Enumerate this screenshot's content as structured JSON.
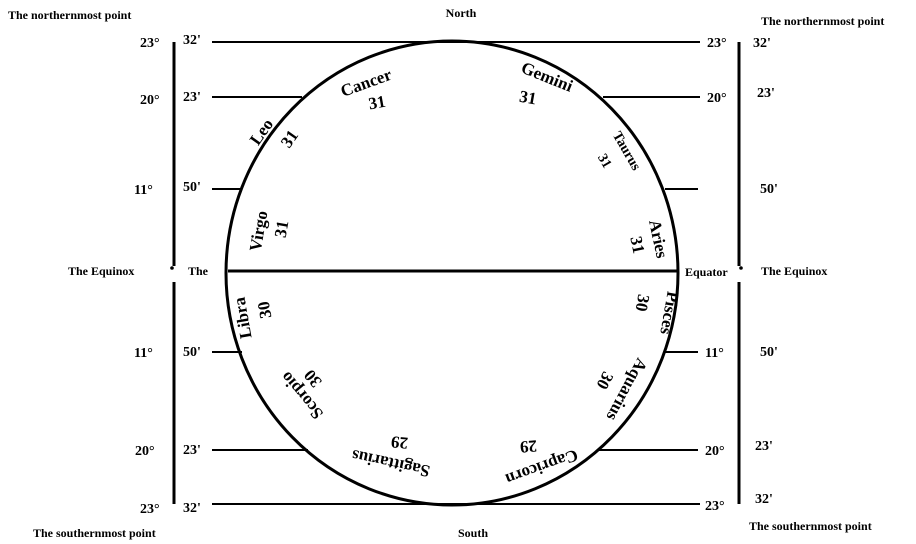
{
  "labels": {
    "north": "North",
    "south": "South",
    "northernmost": "The northernmost point",
    "southernmost": "The southernmost point",
    "equinox": "The Equinox",
    "the": "The",
    "equator": "Equator"
  },
  "angles": {
    "deg23": "23°",
    "deg20": "20°",
    "deg11": "11°",
    "min32": "32'",
    "min23": "23'",
    "min50": "50'"
  },
  "signs": [
    {
      "name": "Cancer",
      "days": "31"
    },
    {
      "name": "Gemini",
      "days": "31"
    },
    {
      "name": "Leo",
      "days": "31"
    },
    {
      "name": "Taurus",
      "days": "31"
    },
    {
      "name": "Virgo",
      "days": "31"
    },
    {
      "name": "Aries",
      "days": "31"
    },
    {
      "name": "Libra",
      "days": "30"
    },
    {
      "name": "Pisces",
      "days": "30"
    },
    {
      "name": "Scorpio",
      "days": "30"
    },
    {
      "name": "Aquarius",
      "days": "30"
    },
    {
      "name": "Sagittarius",
      "days": "29"
    },
    {
      "name": "Capricorn",
      "days": "29"
    }
  ]
}
